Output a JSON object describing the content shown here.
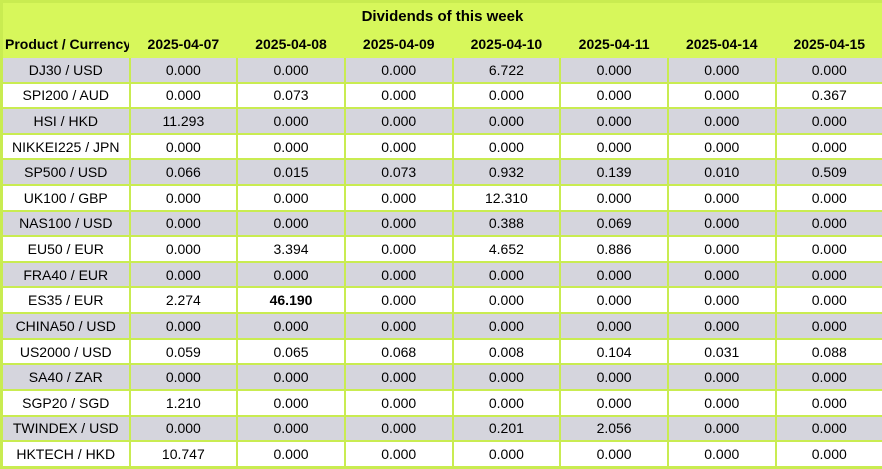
{
  "chart_data": {
    "type": "table",
    "title": "Dividends of this week",
    "columns": [
      "Product / Currency",
      "2025-04-07",
      "2025-04-08",
      "2025-04-09",
      "2025-04-10",
      "2025-04-11",
      "2025-04-14",
      "2025-04-15"
    ],
    "rows": [
      {
        "product": "DJ30 / USD",
        "values": [
          "0.000",
          "0.000",
          "0.000",
          "6.722",
          "0.000",
          "0.000",
          "0.000"
        ]
      },
      {
        "product": "SPI200 / AUD",
        "values": [
          "0.000",
          "0.073",
          "0.000",
          "0.000",
          "0.000",
          "0.000",
          "0.367"
        ]
      },
      {
        "product": "HSI / HKD",
        "values": [
          "11.293",
          "0.000",
          "0.000",
          "0.000",
          "0.000",
          "0.000",
          "0.000"
        ]
      },
      {
        "product": "NIKKEI225 / JPN",
        "values": [
          "0.000",
          "0.000",
          "0.000",
          "0.000",
          "0.000",
          "0.000",
          "0.000"
        ]
      },
      {
        "product": "SP500 / USD",
        "values": [
          "0.066",
          "0.015",
          "0.073",
          "0.932",
          "0.139",
          "0.010",
          "0.509"
        ]
      },
      {
        "product": "UK100 / GBP",
        "values": [
          "0.000",
          "0.000",
          "0.000",
          "12.310",
          "0.000",
          "0.000",
          "0.000"
        ]
      },
      {
        "product": "NAS100 / USD",
        "values": [
          "0.000",
          "0.000",
          "0.000",
          "0.388",
          "0.069",
          "0.000",
          "0.000"
        ]
      },
      {
        "product": "EU50 / EUR",
        "values": [
          "0.000",
          "3.394",
          "0.000",
          "4.652",
          "0.886",
          "0.000",
          "0.000"
        ]
      },
      {
        "product": "FRA40 / EUR",
        "values": [
          "0.000",
          "0.000",
          "0.000",
          "0.000",
          "0.000",
          "0.000",
          "0.000"
        ]
      },
      {
        "product": "ES35 / EUR",
        "values": [
          "2.274",
          "46.190",
          "0.000",
          "0.000",
          "0.000",
          "0.000",
          "0.000"
        ]
      },
      {
        "product": "CHINA50 / USD",
        "values": [
          "0.000",
          "0.000",
          "0.000",
          "0.000",
          "0.000",
          "0.000",
          "0.000"
        ]
      },
      {
        "product": "US2000 / USD",
        "values": [
          "0.059",
          "0.065",
          "0.068",
          "0.008",
          "0.104",
          "0.031",
          "0.088"
        ]
      },
      {
        "product": "SA40 / ZAR",
        "values": [
          "0.000",
          "0.000",
          "0.000",
          "0.000",
          "0.000",
          "0.000",
          "0.000"
        ]
      },
      {
        "product": "SGP20 / SGD",
        "values": [
          "1.210",
          "0.000",
          "0.000",
          "0.000",
          "0.000",
          "0.000",
          "0.000"
        ]
      },
      {
        "product": "TWINDEX / USD",
        "values": [
          "0.000",
          "0.000",
          "0.000",
          "0.201",
          "2.056",
          "0.000",
          "0.000"
        ]
      },
      {
        "product": "HKTECH / HKD",
        "values": [
          "10.747",
          "0.000",
          "0.000",
          "0.000",
          "0.000",
          "0.000",
          "0.000"
        ]
      }
    ],
    "bold_cells": [
      {
        "row_index": 9,
        "value_index": 1
      }
    ],
    "alternating_shaded_row_indexes": [
      0,
      2,
      4,
      6,
      8,
      10,
      12,
      14
    ],
    "layout": {
      "grid": true,
      "legend": "none"
    },
    "colors": {
      "header_bg": "#d7f75b",
      "grid_border": "#c9ec51",
      "shaded_row_bg": "#d5d5dd",
      "plain_row_bg": "#ffffff",
      "text": "#000000"
    }
  }
}
